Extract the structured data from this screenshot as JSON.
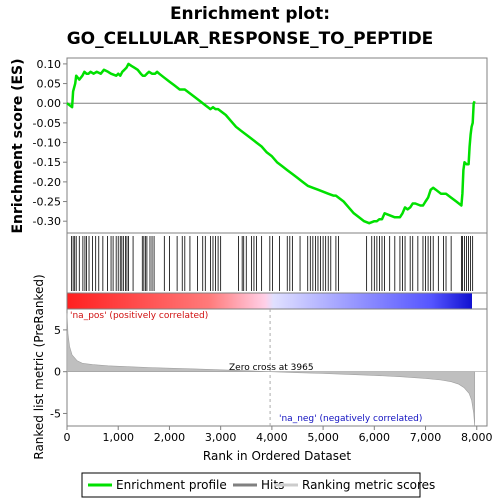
{
  "chart_data": [
    {
      "panel": "enrichment",
      "type": "line",
      "title_line1": "Enrichment plot:",
      "title_line2": "GO_CELLULAR_RESPONSE_TO_PEPTIDE",
      "ylabel": "Enrichment score (ES)",
      "xlim": [
        0,
        8200
      ],
      "ylim": [
        -0.33,
        0.115
      ],
      "yticks": [
        0.1,
        0.05,
        0.0,
        -0.05,
        -0.1,
        -0.15,
        -0.2,
        -0.25,
        -0.3
      ],
      "ytick_labels": [
        "0.10",
        "0.05",
        "0.00",
        "-0.05",
        "-0.10",
        "-0.15",
        "-0.20",
        "-0.25",
        "-0.30"
      ],
      "color": "#00e000",
      "series": [
        {
          "name": "Enrichment profile",
          "x": [
            0,
            100,
            120,
            160,
            180,
            240,
            300,
            340,
            380,
            420,
            460,
            520,
            580,
            660,
            720,
            800,
            860,
            960,
            1000,
            1040,
            1080,
            1120,
            1160,
            1200,
            1260,
            1320,
            1380,
            1440,
            1480,
            1520,
            1560,
            1600,
            1660,
            1720,
            1760,
            1800,
            1900,
            2000,
            2100,
            2200,
            2300,
            2400,
            2500,
            2600,
            2700,
            2800,
            2850,
            2900,
            2950,
            3000,
            3100,
            3200,
            3300,
            3400,
            3500,
            3600,
            3700,
            3800,
            3900,
            4000,
            4100,
            4200,
            4300,
            4400,
            4500,
            4600,
            4700,
            4800,
            4900,
            5000,
            5100,
            5200,
            5250,
            5300,
            5400,
            5500,
            5600,
            5700,
            5800,
            5900,
            6000,
            6050,
            6100,
            6150,
            6200,
            6300,
            6400,
            6450,
            6500,
            6550,
            6600,
            6650,
            6700,
            6750,
            6800,
            6900,
            6950,
            7000,
            7050,
            7100,
            7150,
            7200,
            7300,
            7400,
            7500,
            7600,
            7700,
            7720,
            7740,
            7760,
            7800,
            7840,
            7860,
            7880,
            7900,
            7920,
            7940,
            7960
          ],
          "y": [
            0.0,
            -0.01,
            0.03,
            0.05,
            0.07,
            0.06,
            0.07,
            0.08,
            0.075,
            0.075,
            0.08,
            0.075,
            0.08,
            0.075,
            0.085,
            0.08,
            0.075,
            0.07,
            0.075,
            0.07,
            0.08,
            0.085,
            0.09,
            0.1,
            0.095,
            0.09,
            0.085,
            0.075,
            0.07,
            0.07,
            0.075,
            0.08,
            0.075,
            0.075,
            0.08,
            0.075,
            0.065,
            0.055,
            0.045,
            0.035,
            0.035,
            0.025,
            0.015,
            0.005,
            -0.005,
            -0.015,
            -0.01,
            -0.015,
            -0.015,
            -0.02,
            -0.03,
            -0.045,
            -0.06,
            -0.07,
            -0.08,
            -0.09,
            -0.1,
            -0.11,
            -0.125,
            -0.135,
            -0.15,
            -0.16,
            -0.17,
            -0.18,
            -0.19,
            -0.2,
            -0.21,
            -0.215,
            -0.22,
            -0.225,
            -0.23,
            -0.235,
            -0.235,
            -0.24,
            -0.25,
            -0.265,
            -0.28,
            -0.29,
            -0.3,
            -0.305,
            -0.3,
            -0.3,
            -0.295,
            -0.295,
            -0.28,
            -0.285,
            -0.29,
            -0.29,
            -0.29,
            -0.28,
            -0.265,
            -0.27,
            -0.265,
            -0.255,
            -0.255,
            -0.26,
            -0.26,
            -0.25,
            -0.24,
            -0.22,
            -0.215,
            -0.22,
            -0.23,
            -0.23,
            -0.24,
            -0.25,
            -0.26,
            -0.23,
            -0.17,
            -0.15,
            -0.155,
            -0.155,
            -0.11,
            -0.08,
            -0.06,
            -0.05,
            0.0,
            0.005
          ]
        }
      ]
    },
    {
      "panel": "hits",
      "type": "scatter",
      "xlim": [
        0,
        8200
      ],
      "series": [
        {
          "name": "Hits",
          "x": [
            90,
            120,
            150,
            180,
            240,
            310,
            350,
            380,
            430,
            500,
            560,
            620,
            700,
            790,
            860,
            900,
            960,
            1000,
            1040,
            1070,
            1100,
            1140,
            1170,
            1200,
            1290,
            1470,
            1500,
            1530,
            1560,
            1620,
            1660,
            1700,
            1900,
            2000,
            2150,
            2250,
            2300,
            2400,
            2550,
            2650,
            2700,
            2800,
            2850,
            2900,
            2950,
            3000,
            3350,
            3420,
            3450,
            3500,
            3600,
            3650,
            3700,
            3800,
            3960,
            4010,
            4150,
            4300,
            4350,
            4400,
            4550,
            4700,
            4750,
            4800,
            4850,
            4900,
            4950,
            5000,
            5050,
            5100,
            5150,
            5250,
            5300,
            5850,
            5950,
            6000,
            6050,
            6100,
            6150,
            6200,
            6300,
            6400,
            6500,
            6550,
            6600,
            6700,
            6750,
            6850,
            6950,
            7000,
            7050,
            7100,
            7150,
            7250,
            7350,
            7400,
            7500,
            7700,
            7720,
            7760,
            7800,
            7840,
            7880,
            7920
          ]
        }
      ]
    },
    {
      "panel": "ranked_metric",
      "type": "area",
      "ylabel": "Ranked list metric (PreRanked)",
      "xlabel": "Rank in Ordered Dataset",
      "xlim": [
        0,
        8200
      ],
      "ylim": [
        -6.5,
        7.5
      ],
      "yticks": [
        5,
        0,
        -5
      ],
      "xticks": [
        0,
        1000,
        2000,
        3000,
        4000,
        5000,
        6000,
        7000,
        8000
      ],
      "xtick_labels": [
        "0",
        "1,000",
        "2,000",
        "3,000",
        "4,000",
        "5,000",
        "6,000",
        "7,000",
        "8,000"
      ],
      "series": [
        {
          "name": "Ranking metric scores",
          "x": [
            0,
            20,
            50,
            100,
            200,
            300,
            500,
            800,
            1200,
            1600,
            2000,
            2500,
            3000,
            3500,
            3965,
            4500,
            5000,
            5500,
            6000,
            6500,
            7000,
            7300,
            7500,
            7650,
            7750,
            7850,
            7900,
            7940,
            7960
          ],
          "y": [
            7.0,
            4.5,
            3.0,
            2.0,
            1.3,
            1.0,
            0.85,
            0.7,
            0.6,
            0.5,
            0.42,
            0.33,
            0.22,
            0.12,
            0.0,
            -0.12,
            -0.22,
            -0.33,
            -0.45,
            -0.6,
            -0.8,
            -1.0,
            -1.2,
            -1.5,
            -1.9,
            -2.6,
            -3.4,
            -5.0,
            -6.5
          ]
        }
      ],
      "zero_cross_rank": 3965,
      "annotations": {
        "pos": "'na_pos' (positively correlated)",
        "neg": "'na_neg' (negatively correlated)",
        "zero": "Zero cross at 3965"
      }
    }
  ],
  "legend": {
    "items": [
      {
        "label": "Enrichment profile",
        "color": "#00e000"
      },
      {
        "label": "Hits",
        "color": "#808080"
      },
      {
        "label": "Ranking metric scores",
        "color": "#cccccc"
      }
    ]
  },
  "colors": {
    "es_line": "#00e000",
    "hit_line": "#000000",
    "metric_fill": "#bfbfbf",
    "pos_band": "#ff0000",
    "neg_band": "#0000ff"
  }
}
